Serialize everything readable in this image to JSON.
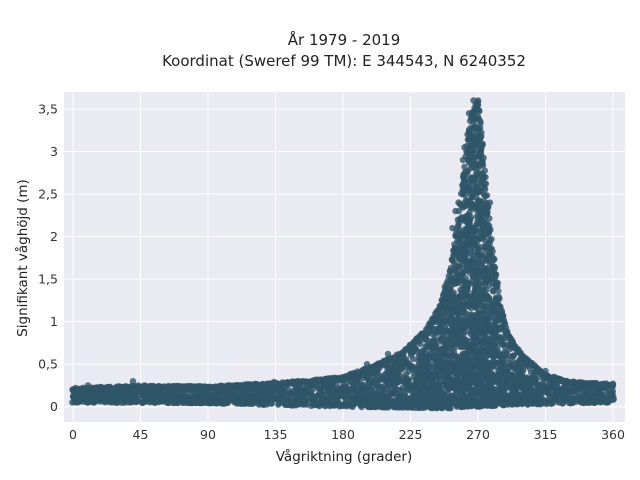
{
  "chart_data": {
    "type": "scatter",
    "title_line1": "År 1979 - 2019",
    "title_line2": "Koordinat (Sweref 99 TM): E 344543, N 6240352",
    "xlabel": "Vågriktning (grader)",
    "ylabel": "Signifikant våghöjd (m)",
    "xlim": [
      -6,
      368
    ],
    "ylim": [
      -0.18,
      3.7
    ],
    "x_ticks": [
      0,
      45,
      90,
      135,
      180,
      225,
      270,
      315,
      360
    ],
    "x_tick_labels": [
      "0",
      "45",
      "90",
      "135",
      "180",
      "225",
      "270",
      "315",
      "360"
    ],
    "y_ticks": [
      0,
      0.5,
      1,
      1.5,
      2,
      2.5,
      3,
      3.5
    ],
    "y_tick_labels": [
      "0",
      "0,5",
      "1",
      "1,5",
      "2",
      "2,5",
      "3",
      "3,5"
    ],
    "grid": true,
    "background_color": "#eaeaf2",
    "marker_color": "#2f5568",
    "upper_envelope": {
      "x": [
        0,
        45,
        90,
        135,
        180,
        200,
        220,
        235,
        245,
        252,
        258,
        262,
        265,
        268,
        270,
        272,
        274,
        276,
        280,
        285,
        290,
        300,
        315,
        330,
        345,
        360
      ],
      "y": [
        0.22,
        0.25,
        0.24,
        0.28,
        0.35,
        0.48,
        0.65,
        0.9,
        1.2,
        1.65,
        2.4,
        3.0,
        3.4,
        3.55,
        3.6,
        3.3,
        2.9,
        2.5,
        1.8,
        1.2,
        0.85,
        0.6,
        0.38,
        0.3,
        0.28,
        0.27
      ]
    },
    "lower_envelope": {
      "x": [
        0,
        90,
        180,
        250,
        270,
        290,
        360
      ],
      "y": [
        0.05,
        0.04,
        0.0,
        -0.02,
        0.0,
        0.02,
        0.05
      ]
    },
    "highlight_points": [
      {
        "x": 267,
        "y": 3.6
      },
      {
        "x": 270,
        "y": 3.6
      },
      {
        "x": 264,
        "y": 3.45
      },
      {
        "x": 266,
        "y": 3.4
      },
      {
        "x": 268,
        "y": 3.3
      },
      {
        "x": 263,
        "y": 3.2
      },
      {
        "x": 271,
        "y": 3.15
      },
      {
        "x": 261,
        "y": 3.05
      },
      {
        "x": 272,
        "y": 3.0
      },
      {
        "x": 260,
        "y": 2.9
      },
      {
        "x": 257,
        "y": 2.4
      },
      {
        "x": 255,
        "y": 2.3
      },
      {
        "x": 253,
        "y": 2.1
      },
      {
        "x": 275,
        "y": 2.7
      },
      {
        "x": 278,
        "y": 2.4
      },
      {
        "x": 293,
        "y": 0.75
      },
      {
        "x": 297,
        "y": 0.65
      },
      {
        "x": 315,
        "y": 0.42
      },
      {
        "x": 300,
        "y": 0.55
      },
      {
        "x": 196,
        "y": 0.5
      },
      {
        "x": 210,
        "y": 0.62
      },
      {
        "x": 134,
        "y": 0.29
      },
      {
        "x": 40,
        "y": 0.3
      },
      {
        "x": 10,
        "y": 0.25
      },
      {
        "x": 360,
        "y": 0.27
      },
      {
        "x": 355,
        "y": 0.25
      }
    ]
  }
}
